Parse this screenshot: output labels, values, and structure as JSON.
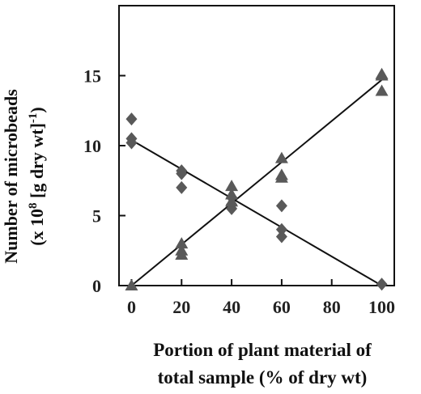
{
  "chart_data": {
    "type": "scatter",
    "title": "",
    "xlabel": [
      "Portion of plant material of",
      "total sample (% of dry wt)"
    ],
    "ylabel": [
      "Number of microbeads",
      "(x 10",
      "8",
      " [g dry wt]",
      "-1",
      ")"
    ],
    "xlim": [
      -5,
      105
    ],
    "ylim": [
      0,
      20
    ],
    "x_ticks": [
      0,
      20,
      40,
      60,
      80,
      100
    ],
    "y_ticks": [
      0,
      5,
      10,
      15
    ],
    "grid": false,
    "series": [
      {
        "marker": "diamond",
        "color": "#595959",
        "points": [
          [
            0,
            11.9
          ],
          [
            0,
            10.5
          ],
          [
            0,
            10.2
          ],
          [
            20,
            8.2
          ],
          [
            20,
            8.0
          ],
          [
            20,
            7.0
          ],
          [
            40,
            6.3
          ],
          [
            40,
            5.8
          ],
          [
            40,
            5.5
          ],
          [
            60,
            5.7
          ],
          [
            60,
            4.0
          ],
          [
            60,
            3.5
          ],
          [
            100,
            0.1
          ]
        ],
        "fit_line": [
          [
            0,
            10.4
          ],
          [
            100,
            0.0
          ]
        ]
      },
      {
        "marker": "triangle",
        "color": "#595959",
        "points": [
          [
            0,
            0.0
          ],
          [
            20,
            3.0
          ],
          [
            20,
            2.5
          ],
          [
            20,
            2.2
          ],
          [
            40,
            7.1
          ],
          [
            40,
            6.5
          ],
          [
            40,
            6.0
          ],
          [
            60,
            9.1
          ],
          [
            60,
            7.9
          ],
          [
            60,
            7.7
          ],
          [
            100,
            15.1
          ],
          [
            100,
            15.0
          ],
          [
            100,
            13.9
          ]
        ],
        "fit_line": [
          [
            0,
            0.0
          ],
          [
            100,
            14.7
          ]
        ]
      }
    ]
  }
}
